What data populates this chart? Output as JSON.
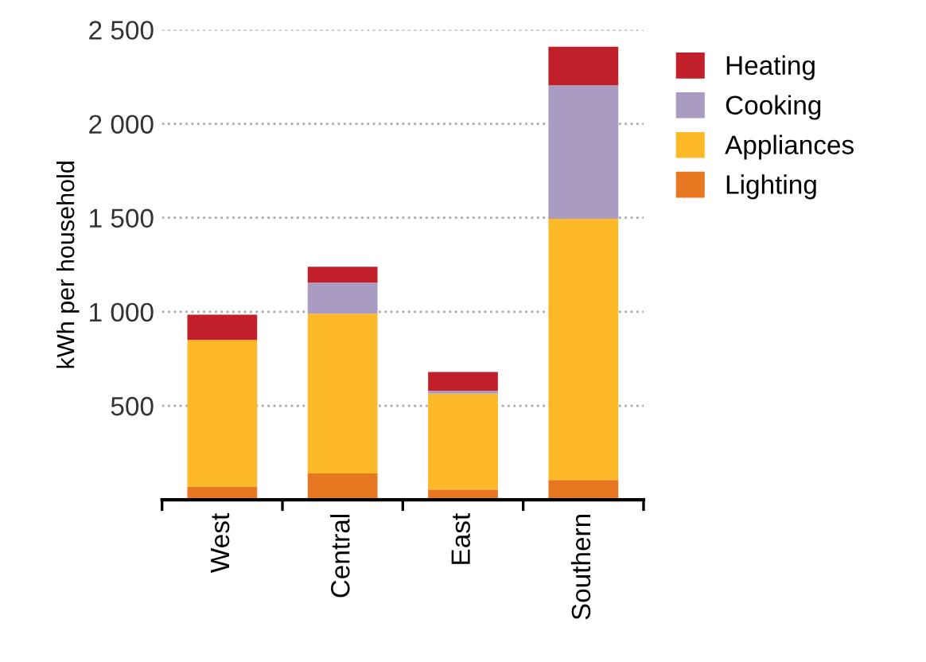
{
  "chart_data": {
    "type": "bar",
    "stacked": true,
    "ylabel": "kWh per household",
    "categories": [
      "West",
      "Central",
      "East",
      "Southern"
    ],
    "series": [
      {
        "name": "Lighting",
        "color": "#e87722",
        "values": [
          70,
          140,
          55,
          105
        ]
      },
      {
        "name": "Appliances",
        "color": "#fdb927",
        "values": [
          780,
          850,
          510,
          1390
        ]
      },
      {
        "name": "Cooking",
        "color": "#a99bc2",
        "values": [
          0,
          165,
          15,
          710
        ]
      },
      {
        "name": "Heating",
        "color": "#c1202a",
        "values": [
          135,
          85,
          100,
          205
        ]
      }
    ],
    "ylim": [
      0,
      2500
    ],
    "yticks": [
      {
        "value": 500,
        "label": "500"
      },
      {
        "value": 1000,
        "label": "1 000"
      },
      {
        "value": 1500,
        "label": "1 500"
      },
      {
        "value": 2000,
        "label": "2 000"
      },
      {
        "value": 2500,
        "label": "2 500"
      }
    ],
    "grid": "y",
    "legend": "right"
  }
}
